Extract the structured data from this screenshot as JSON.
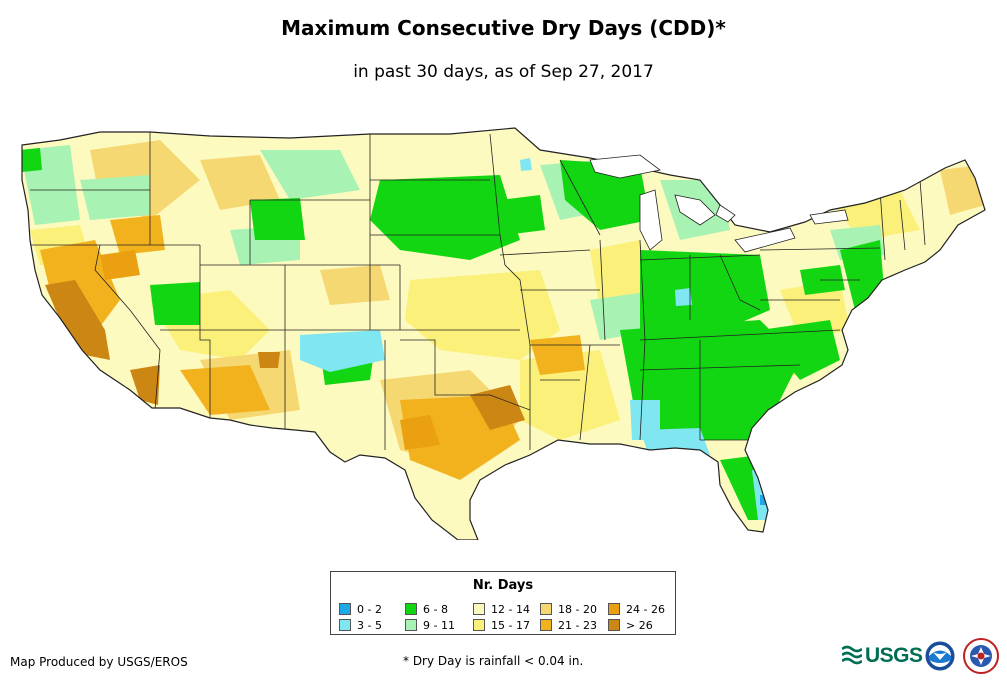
{
  "header": {
    "title": "Maximum Consecutive Dry Days (CDD)*",
    "subtitle": "in past 30 days, as of Sep 27, 2017"
  },
  "legend": {
    "title": "Nr. Days",
    "items": [
      {
        "label": "0 - 2",
        "color": "#1ea8e8"
      },
      {
        "label": "3 - 5",
        "color": "#7fe6f2"
      },
      {
        "label": "6 - 8",
        "color": "#12d612"
      },
      {
        "label": "9 - 11",
        "color": "#a8f2b4"
      },
      {
        "label": "12 - 14",
        "color": "#fdfac0"
      },
      {
        "label": "15 - 17",
        "color": "#faf07a"
      },
      {
        "label": "18 - 20",
        "color": "#f6d872"
      },
      {
        "label": "21 - 23",
        "color": "#f2b21e"
      },
      {
        "label": "24 - 26",
        "color": "#eaa010"
      },
      {
        "label": "> 26",
        "color": "#cc8614"
      }
    ]
  },
  "footer": {
    "credit": "Map Produced by USGS/EROS",
    "footnote": "* Dry Day is rainfall < 0.04 in."
  },
  "logos": {
    "usgs": "USGS",
    "usgs_icon": "usgs-wave-icon",
    "noaa_icon": "noaa-icon",
    "nws_icon": "nws-icon"
  }
}
